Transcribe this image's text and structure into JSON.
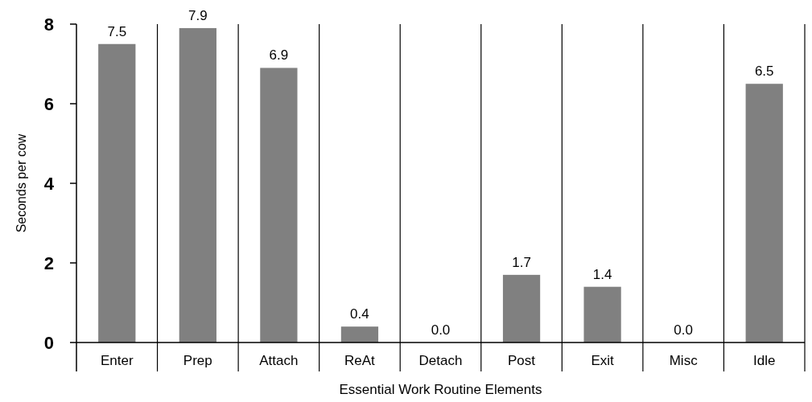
{
  "chart_data": {
    "type": "bar",
    "xlabel": "Essential Work Routine Elements",
    "ylabel": "Seconds per cow",
    "categories": [
      "Enter",
      "Prep",
      "Attach",
      "ReAt",
      "Detach",
      "Post",
      "Exit",
      "Misc",
      "Idle"
    ],
    "values": [
      7.5,
      7.9,
      6.9,
      0.4,
      0.0,
      1.7,
      1.4,
      0.0,
      6.5
    ],
    "value_labels": [
      "7.5",
      "7.9",
      "6.9",
      "0.4",
      "0.0",
      "1.7",
      "1.4",
      "0.0",
      "6.5"
    ],
    "color": "#808080",
    "ylim": [
      0,
      8
    ],
    "yticks": [
      0,
      2,
      4,
      6,
      8
    ],
    "grid": "x"
  }
}
